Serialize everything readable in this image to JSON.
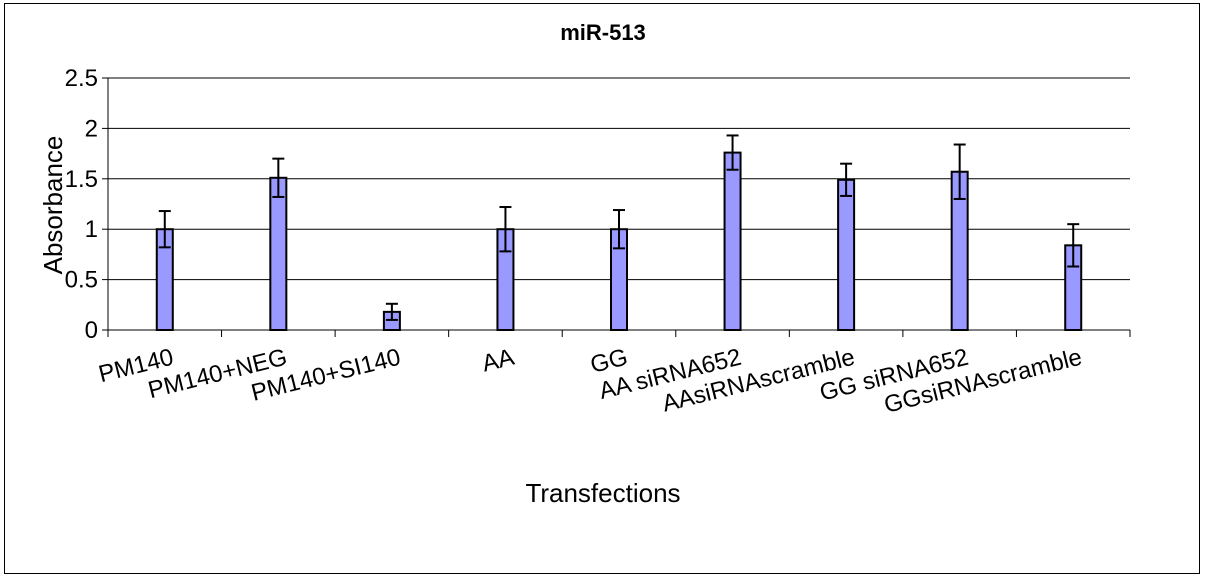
{
  "chart_data": {
    "type": "bar",
    "title": "miR-513",
    "xlabel": "Transfections",
    "ylabel": "Absorbance",
    "ylim": [
      0,
      2.5
    ],
    "yticks": [
      "0",
      "0.5",
      "1",
      "1.5",
      "2",
      "2.5"
    ],
    "categories": [
      "PM140",
      "PM140+NEG",
      "PM140+SI140",
      "AA",
      "GG",
      "AA siRNA652",
      "AAsiRNAscramble",
      "GG siRNA652",
      "GGsiRNAscramble"
    ],
    "values": [
      1.0,
      1.51,
      0.18,
      1.0,
      1.0,
      1.76,
      1.49,
      1.57,
      0.84
    ],
    "error": [
      0.18,
      0.19,
      0.08,
      0.22,
      0.19,
      0.17,
      0.16,
      0.27,
      0.21
    ],
    "grid": true,
    "legend": "none",
    "bar_color": "#9999ff"
  }
}
